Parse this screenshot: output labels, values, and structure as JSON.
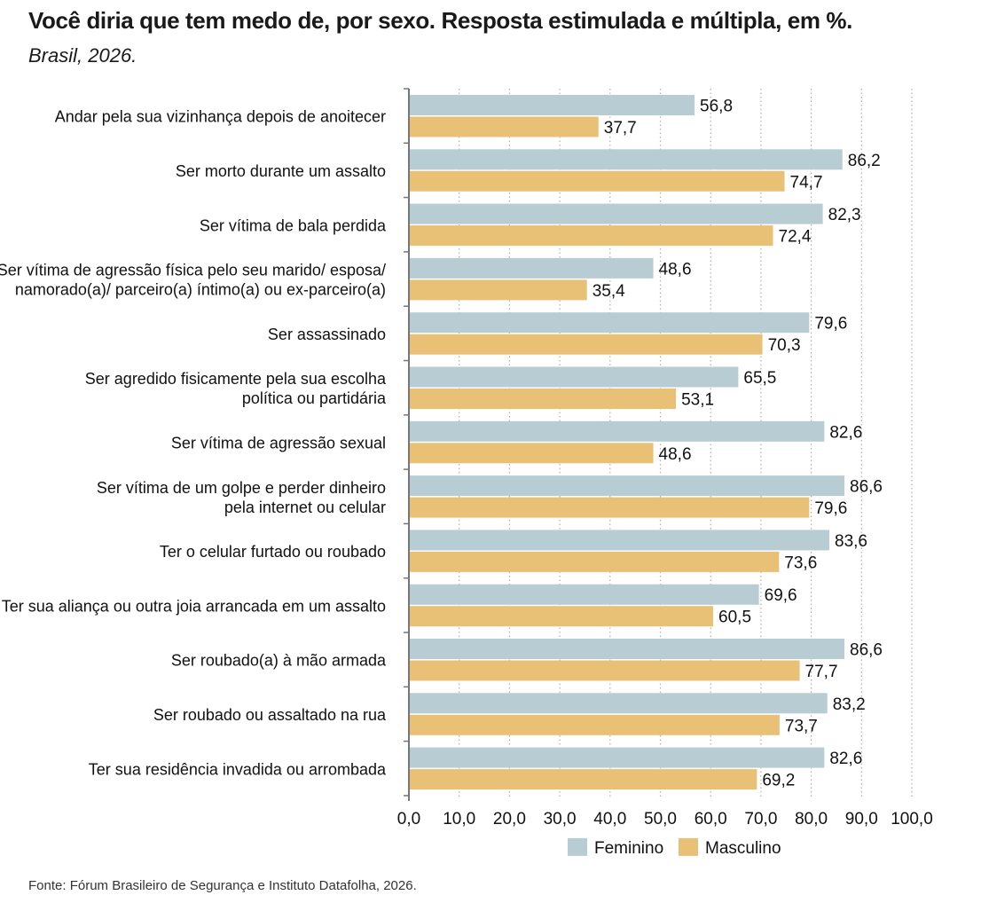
{
  "title": "Você diria que tem medo de, por sexo. Resposta estimulada e múltipla, em %.",
  "subtitle": "Brasil, 2026.",
  "source": "Fonte: Fórum Brasileiro de Segurança e Instituto Datafolha, 2026.",
  "colors": {
    "feminino": "#b8ccd3",
    "masculino": "#e8c177",
    "grid": "#b0b0b0",
    "axis": "#777777"
  },
  "chart_data": {
    "type": "bar",
    "orientation": "horizontal",
    "categories": [
      [
        "Andar pela sua vizinhança depois de anoitecer"
      ],
      [
        "Ser morto durante um assalto"
      ],
      [
        "Ser vítima de bala perdida"
      ],
      [
        "Ser vítima de agressão física pelo seu marido/ esposa/",
        "namorado(a)/ parceiro(a) íntimo(a) ou ex-parceiro(a)"
      ],
      [
        "Ser assassinado"
      ],
      [
        "Ser agredido fisicamente pela sua escolha",
        "política ou partidária"
      ],
      [
        "Ser vítima de agressão sexual"
      ],
      [
        "Ser vítima de um golpe e perder dinheiro",
        "pela internet ou celular"
      ],
      [
        "Ter o celular furtado ou roubado"
      ],
      [
        "Ter sua aliança ou outra joia arrancada em um assalto"
      ],
      [
        "Ser roubado(a) à mão armada"
      ],
      [
        "Ser roubado ou assaltado na rua"
      ],
      [
        "Ter sua residência invadida ou arrombada"
      ]
    ],
    "series": [
      {
        "name": "Feminino",
        "color": "#b8ccd3",
        "values": [
          56.8,
          86.2,
          82.3,
          48.6,
          79.6,
          65.5,
          82.6,
          86.6,
          83.6,
          69.6,
          86.6,
          83.2,
          82.6
        ]
      },
      {
        "name": "Masculino",
        "color": "#e8c177",
        "values": [
          37.7,
          74.7,
          72.4,
          35.4,
          70.3,
          53.1,
          48.6,
          79.6,
          73.6,
          60.5,
          77.7,
          73.7,
          69.2
        ]
      }
    ],
    "xlim": [
      0,
      100
    ],
    "xticks": [
      "0,0",
      "10,0",
      "20,0",
      "30,0",
      "40,0",
      "50,0",
      "60,0",
      "70,0",
      "80,0",
      "90,0",
      "100,0"
    ],
    "grid": "vertical dotted",
    "legend": "bottom-center",
    "decimal_separator": ","
  }
}
